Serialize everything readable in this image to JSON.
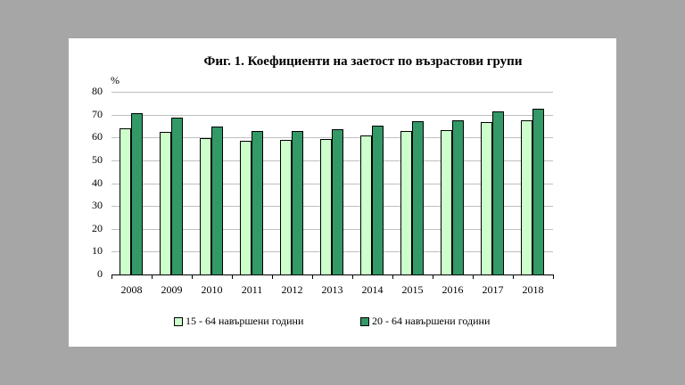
{
  "chart_data": {
    "type": "bar",
    "title": "Фиг. 1. Коефициенти на заетост по възрастови групи",
    "ylabel": "%",
    "xlabel": "",
    "ylim": [
      0,
      80
    ],
    "yticks": [
      0,
      10,
      20,
      30,
      40,
      50,
      60,
      70,
      80
    ],
    "grid": true,
    "legend_position": "bottom",
    "categories": [
      "2008",
      "2009",
      "2010",
      "2011",
      "2012",
      "2013",
      "2014",
      "2015",
      "2016",
      "2017",
      "2018"
    ],
    "series": [
      {
        "name": "15 - 64 навършени години",
        "color": "#ccffcc",
        "values": [
          64.0,
          62.6,
          59.7,
          58.4,
          58.8,
          59.5,
          61.0,
          62.9,
          63.4,
          66.9,
          67.7
        ]
      },
      {
        "name": "20 - 64 навършени години",
        "color": "#339966",
        "values": [
          70.7,
          68.8,
          64.7,
          62.9,
          63.0,
          63.5,
          65.1,
          67.1,
          67.7,
          71.3,
          72.4
        ]
      }
    ]
  }
}
